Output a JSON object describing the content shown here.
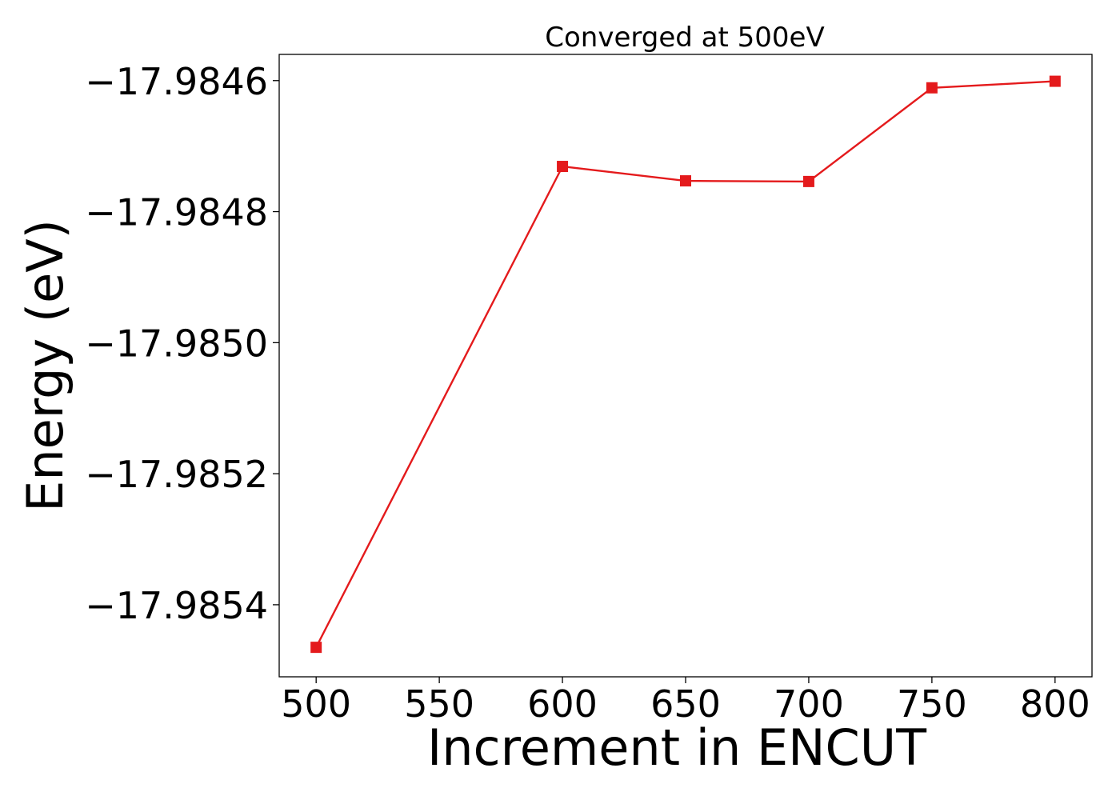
{
  "chart_data": {
    "type": "line",
    "title": "Converged at 500eV",
    "xlabel": "Increment in ENCUT",
    "ylabel": "Energy (eV)",
    "x": [
      500,
      600,
      650,
      700,
      750,
      800
    ],
    "series": [
      {
        "values": [
          -17.985465,
          -17.984731,
          -17.984753,
          -17.984754,
          -17.984611,
          -17.984601
        ],
        "color": "#e41a1c",
        "marker": "square"
      }
    ],
    "xlim": [
      485,
      815
    ],
    "ylim": [
      -17.98551,
      -17.98456
    ],
    "xticks": [
      500,
      550,
      600,
      650,
      700,
      750,
      800
    ],
    "xtick_labels": [
      "500",
      "550",
      "600",
      "650",
      "700",
      "750",
      "800"
    ],
    "yticks": [
      -17.9846,
      -17.9848,
      -17.985,
      -17.9852,
      -17.9854
    ],
    "ytick_labels": [
      "−17.9846",
      "−17.9848",
      "−17.9850",
      "−17.9852",
      "−17.9854"
    ],
    "grid": false,
    "legend": "none"
  }
}
